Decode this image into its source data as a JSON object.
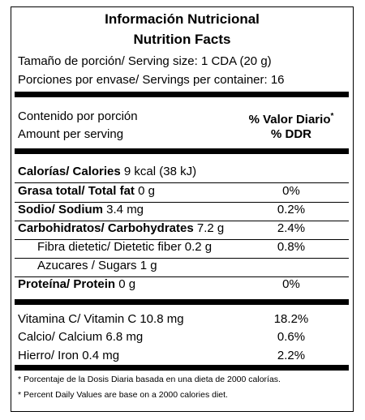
{
  "header": {
    "title_es": "Información Nutricional",
    "title_en": "Nutrition Facts"
  },
  "serving": {
    "size": "Tamaño de porción/ Serving size: 1 CDA (20 g)",
    "per_container": "Porciones por envase/ Servings per container: 16"
  },
  "columns": {
    "amount_es": "Contenido por porción",
    "dv_es": "% Valor Diario",
    "dv_mark": "*",
    "amount_en": "Amount per serving",
    "dv_en": "% DDR"
  },
  "nutrients": [
    {
      "label": "Calorías/ Calories",
      "amount": "9 kcal (38 kJ)"
    },
    {
      "label": "Grasa total/ Total fat",
      "amount": "0 g",
      "dv": "0%"
    },
    {
      "label": "Sodio/ Sodium",
      "amount": "3.4 mg",
      "dv": "0.2%"
    },
    {
      "label": "Carbohidratos/ Carbohydrates",
      "amount": "7.2 g",
      "dv": "2.4%"
    },
    {
      "label": "Fibra dietetic/ Dietetic fiber",
      "amount": "0.2 g",
      "dv": "0.8%"
    },
    {
      "label": "Azucares / Sugars",
      "amount": "1 g"
    },
    {
      "label": "Proteína/ Protein",
      "amount": "0 g",
      "dv": "0%"
    }
  ],
  "vitamins": [
    {
      "label": "Vitamina C/ Vitamin C",
      "amount": "10.8 mg",
      "dv": "18.2%"
    },
    {
      "label": "Calcio/ Calcium",
      "amount": "6.8 mg",
      "dv": "0.6%"
    },
    {
      "label": "Hierro/ Iron",
      "amount": "0.4 mg",
      "dv": "2.2%"
    }
  ],
  "footnotes": [
    "* Porcentaje de la Dosis Diaria basada en una dieta de 2000 calorías.",
    "* Percent Daily Values are base on a 2000 calories diet."
  ]
}
